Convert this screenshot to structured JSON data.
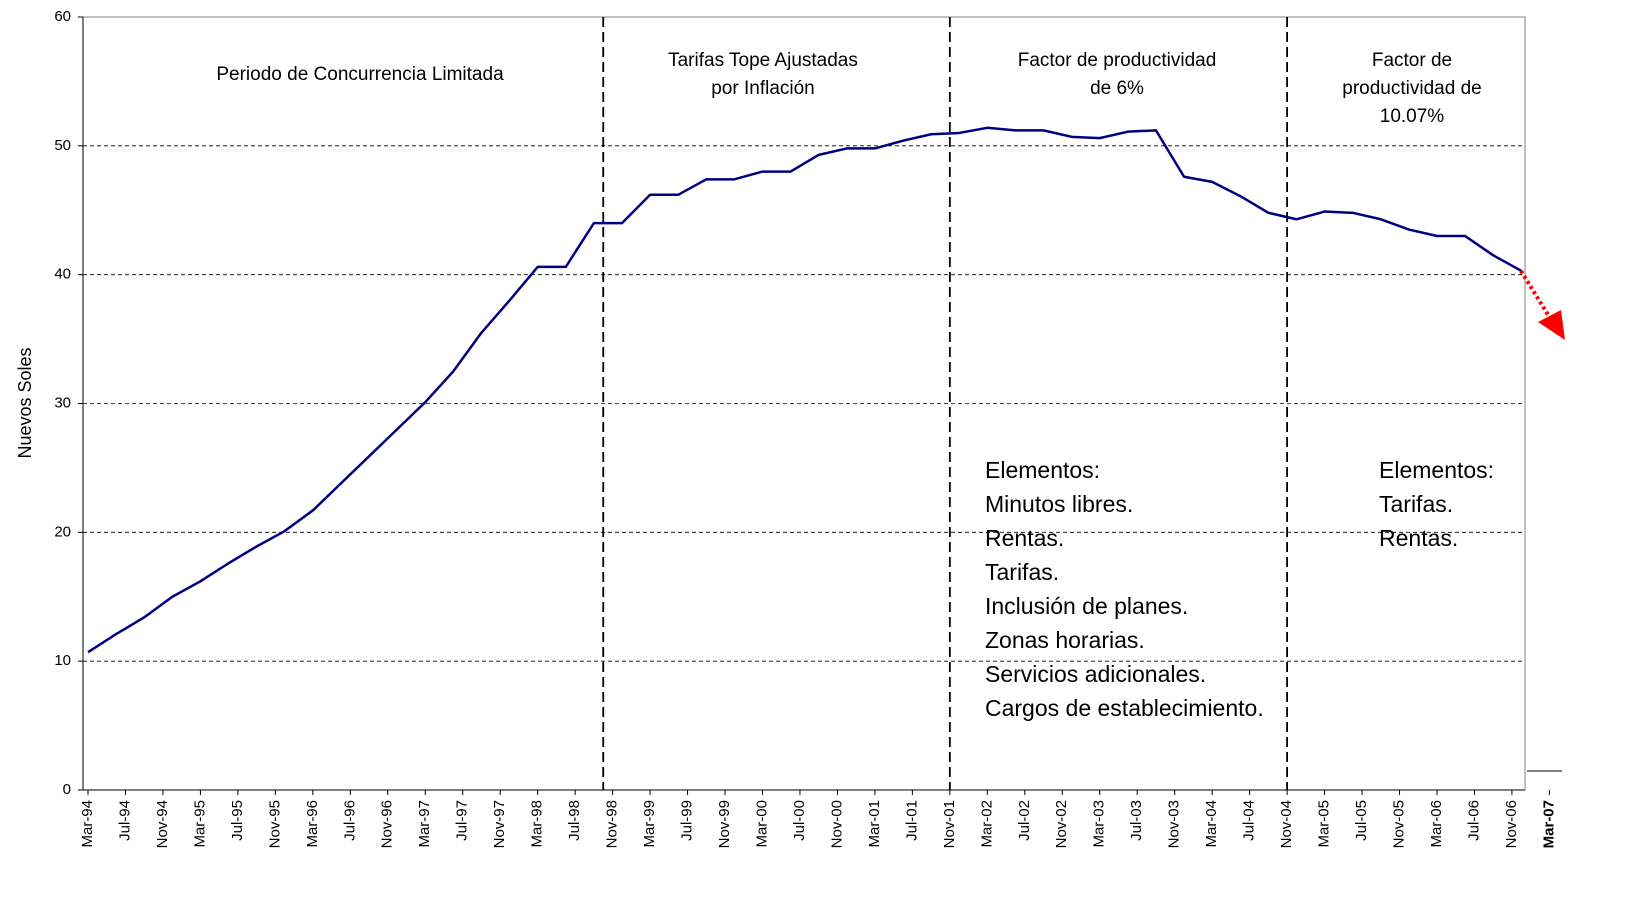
{
  "chart_data": {
    "type": "line",
    "y_label": "Nuevos Soles",
    "x": [
      "1994-03",
      "1994-06",
      "1994-09",
      "1994-12",
      "1995-03",
      "1995-06",
      "1995-09",
      "1995-12",
      "1996-03",
      "1996-06",
      "1996-09",
      "1996-12",
      "1997-03",
      "1997-06",
      "1997-09",
      "1997-12",
      "1998-03",
      "1998-06",
      "1998-09",
      "1998-12",
      "1999-03",
      "1999-06",
      "1999-09",
      "1999-12",
      "2000-03",
      "2000-06",
      "2000-09",
      "2000-12",
      "2001-03",
      "2001-06",
      "2001-09",
      "2001-12",
      "2002-03",
      "2002-06",
      "2002-09",
      "2002-12",
      "2003-03",
      "2003-06",
      "2003-09",
      "2003-12",
      "2004-03",
      "2004-06",
      "2004-09",
      "2004-12",
      "2005-03",
      "2005-06",
      "2005-09",
      "2005-12",
      "2006-03",
      "2006-06",
      "2006-09",
      "2006-12"
    ],
    "series": [
      {
        "name": "Nuevos Soles",
        "color": "#000080",
        "values": [
          10.7,
          12.1,
          13.4,
          15.0,
          16.2,
          17.6,
          18.9,
          20.1,
          21.7,
          23.8,
          25.9,
          28.0,
          30.1,
          32.5,
          35.5,
          38.0,
          40.6,
          40.6,
          44.0,
          44.0,
          46.2,
          46.2,
          47.4,
          47.4,
          48.0,
          48.0,
          49.3,
          49.8,
          49.8,
          50.4,
          50.9,
          51.0,
          51.4,
          51.2,
          51.2,
          50.7,
          50.6,
          51.1,
          51.2,
          47.6,
          47.2,
          46.1,
          44.8,
          44.3,
          44.9,
          44.8,
          44.3,
          43.5,
          43.0,
          43.0,
          41.5,
          40.3
        ]
      }
    ],
    "xticks": [
      {
        "value": "1994-03",
        "label": "Mar-94"
      },
      {
        "value": "1994-07",
        "label": "Jul-94"
      },
      {
        "value": "1994-11",
        "label": "Nov-94"
      },
      {
        "value": "1995-03",
        "label": "Mar-95"
      },
      {
        "value": "1995-07",
        "label": "Jul-95"
      },
      {
        "value": "1995-11",
        "label": "Nov-95"
      },
      {
        "value": "1996-03",
        "label": "Mar-96"
      },
      {
        "value": "1996-07",
        "label": "Jul-96"
      },
      {
        "value": "1996-11",
        "label": "Nov-96"
      },
      {
        "value": "1997-03",
        "label": "Mar-97"
      },
      {
        "value": "1997-07",
        "label": "Jul-97"
      },
      {
        "value": "1997-11",
        "label": "Nov-97"
      },
      {
        "value": "1998-03",
        "label": "Mar-98"
      },
      {
        "value": "1998-07",
        "label": "Jul-98"
      },
      {
        "value": "1998-11",
        "label": "Nov-98"
      },
      {
        "value": "1999-03",
        "label": "Mar-99"
      },
      {
        "value": "1999-07",
        "label": "Jul-99"
      },
      {
        "value": "1999-11",
        "label": "Nov-99"
      },
      {
        "value": "2000-03",
        "label": "Mar-00"
      },
      {
        "value": "2000-07",
        "label": "Jul-00"
      },
      {
        "value": "2000-11",
        "label": "Nov-00"
      },
      {
        "value": "2001-03",
        "label": "Mar-01"
      },
      {
        "value": "2001-07",
        "label": "Jul-01"
      },
      {
        "value": "2001-11",
        "label": "Nov-01"
      },
      {
        "value": "2002-03",
        "label": "Mar-02"
      },
      {
        "value": "2002-07",
        "label": "Jul-02"
      },
      {
        "value": "2002-11",
        "label": "Nov-02"
      },
      {
        "value": "2003-03",
        "label": "Mar-03"
      },
      {
        "value": "2003-07",
        "label": "Jul-03"
      },
      {
        "value": "2003-11",
        "label": "Nov-03"
      },
      {
        "value": "2004-03",
        "label": "Mar-04"
      },
      {
        "value": "2004-07",
        "label": "Jul-04"
      },
      {
        "value": "2004-11",
        "label": "Nov-04"
      },
      {
        "value": "2005-03",
        "label": "Mar-05"
      },
      {
        "value": "2005-07",
        "label": "Jul-05"
      },
      {
        "value": "2005-11",
        "label": "Nov-05"
      },
      {
        "value": "2006-03",
        "label": "Mar-06"
      },
      {
        "value": "2006-07",
        "label": "Jul-06"
      },
      {
        "value": "2006-11",
        "label": "Nov-06"
      },
      {
        "value": "2007-03",
        "label": "Mar-07"
      }
    ],
    "ylim": [
      0,
      60
    ],
    "yticks": [
      0,
      10,
      20,
      30,
      40,
      50,
      60
    ],
    "grid": true,
    "dividers": [
      "1998-10",
      "2001-11",
      "2004-11"
    ],
    "periods": [
      [
        "Periodo de Concurrencia Limitada"
      ],
      [
        "Tarifas Tope Ajustadas",
        "por Inflación"
      ],
      [
        "Factor de productividad",
        "de 6%"
      ],
      [
        "Factor de",
        "productividad de",
        "10.07%"
      ]
    ],
    "elements": [
      [
        "Elementos:",
        "Minutos libres.",
        "Rentas.",
        "Tarifas.",
        "Inclusión de planes.",
        "Zonas horarias.",
        "Servicios adicionales.",
        "Cargos de establecimiento."
      ],
      [
        "Elementos:",
        "Tarifas.",
        "Rentas."
      ]
    ]
  }
}
